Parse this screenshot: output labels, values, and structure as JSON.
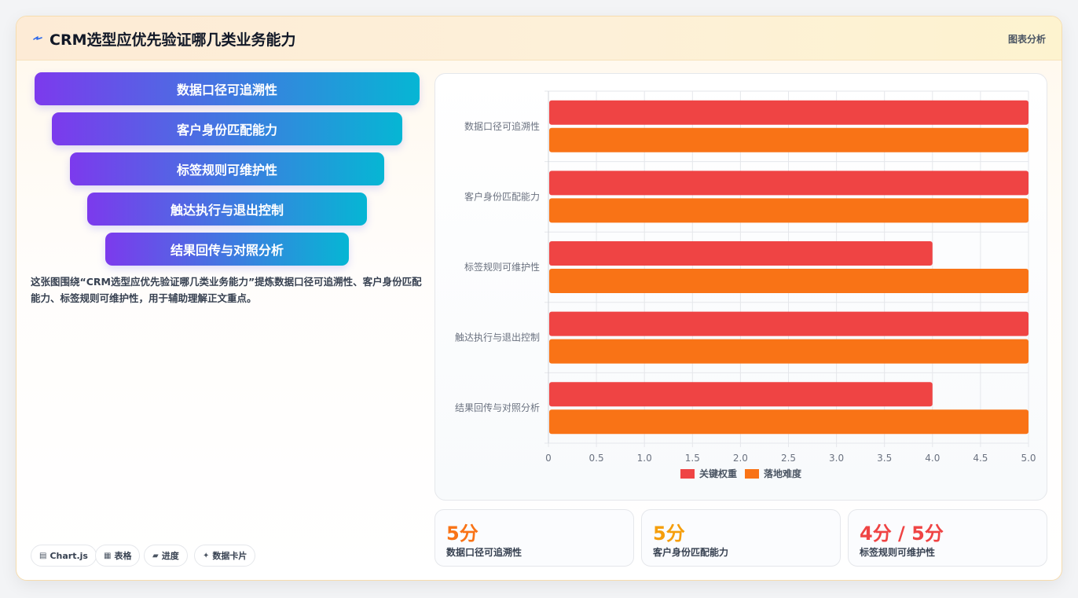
{
  "header": {
    "title": "CRM选型应优先验证哪几类业务能力",
    "tag": "图表分析"
  },
  "funnel": {
    "steps": [
      "数据口径可追溯性",
      "客户身份匹配能力",
      "标签规则可维护性",
      "触达执行与退出控制",
      "结果回传与对照分析"
    ]
  },
  "description": "这张图围绕“CRM选型应优先验证哪几类业务能力”提炼数据口径可追溯性、客户身份匹配能力、标签规则可维护性，用于辅助理解正文重点。",
  "chips": [
    {
      "icon": "chart-icon",
      "glyph": "▤",
      "label": "Chart.js"
    },
    {
      "icon": "table-icon",
      "glyph": "▦",
      "label": "表格"
    },
    {
      "icon": "progress-icon",
      "glyph": "▰",
      "label": "进度"
    },
    {
      "icon": "sparkle-icon",
      "glyph": "✦",
      "label": "数据卡片"
    }
  ],
  "kpis": [
    {
      "value": "5分",
      "label": "数据口径可追溯性",
      "color": "#f97316"
    },
    {
      "value": "5分",
      "label": "客户身份匹配能力",
      "color": "#f59e0b"
    },
    {
      "value": "4分 / 5分",
      "label": "标签规则可维护性",
      "color": "#ef4444"
    }
  ],
  "chart_data": {
    "type": "bar",
    "orientation": "horizontal",
    "categories": [
      "数据口径可追溯性",
      "客户身份匹配能力",
      "标签规则可维护性",
      "触达执行与退出控制",
      "结果回传与对照分析"
    ],
    "series": [
      {
        "name": "关键权重",
        "values": [
          5,
          5,
          4,
          5,
          4
        ],
        "color": "#ef4444"
      },
      {
        "name": "落地难度",
        "values": [
          5,
          5,
          5,
          5,
          5
        ],
        "color": "#f97316"
      }
    ],
    "xlim": [
      0,
      5
    ],
    "xticks": [
      "0",
      "0.5",
      "1.0",
      "1.5",
      "2.0",
      "2.5",
      "3.0",
      "3.5",
      "4.0",
      "4.5",
      "5.0"
    ],
    "grid": true,
    "legend": "bottom"
  }
}
